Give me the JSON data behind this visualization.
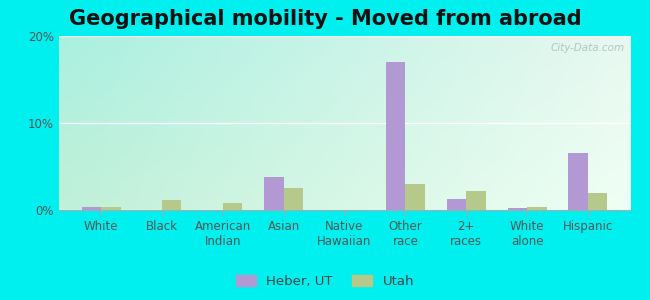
{
  "title": "Geographical mobility - Moved from abroad",
  "categories": [
    "White",
    "Black",
    "American\nIndian",
    "Asian",
    "Native\nHawaiian",
    "Other\nrace",
    "2+\nraces",
    "White\nalone",
    "Hispanic"
  ],
  "heber_values": [
    0.3,
    0.0,
    0.0,
    3.8,
    0.0,
    17.0,
    1.3,
    0.2,
    6.5
  ],
  "utah_values": [
    0.3,
    1.2,
    0.8,
    2.5,
    0.0,
    3.0,
    2.2,
    0.3,
    2.0
  ],
  "heber_color": "#b399d4",
  "utah_color": "#b5c98a",
  "ylim": [
    0,
    20
  ],
  "yticks": [
    0,
    10,
    20
  ],
  "ytick_labels": [
    "0%",
    "10%",
    "20%"
  ],
  "legend_labels": [
    "Heber, UT",
    "Utah"
  ],
  "outer_bg": "#00EFEF",
  "watermark": "City-Data.com",
  "title_fontsize": 15,
  "axis_fontsize": 8.5,
  "bg_topleft": "#aaf5e8",
  "bg_topright": "#e8f8f0",
  "bg_bottomleft": "#c8f5e0",
  "bg_bottomright": "#f5fff5"
}
